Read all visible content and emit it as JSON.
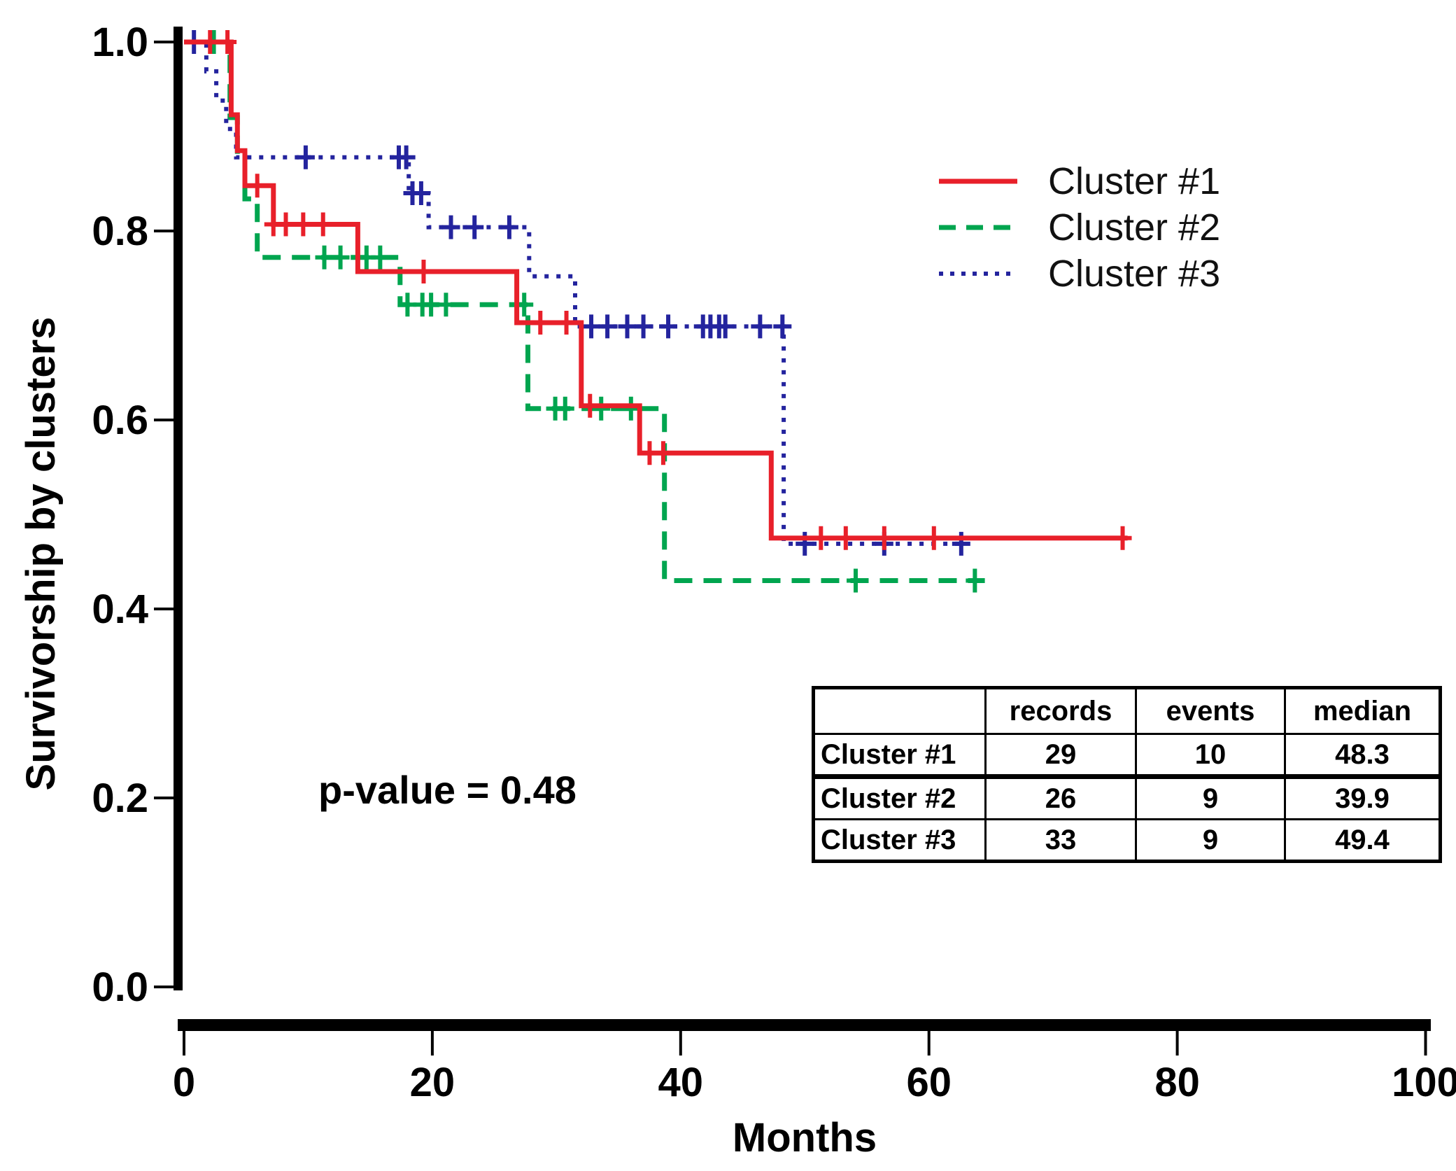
{
  "figure": {
    "y_axis_label": "Survivorship by clusters",
    "x_axis_label": "Months",
    "p_value_text": "p-value = 0.48",
    "legend": [
      {
        "label": "Cluster #1",
        "color": "#e8202a",
        "style": "solid"
      },
      {
        "label": "Cluster #2",
        "color": "#00a54f",
        "style": "dashed"
      },
      {
        "label": "Cluster #3",
        "color": "#24249e",
        "style": "dotted"
      }
    ],
    "table": {
      "headers": [
        "",
        "records",
        "events",
        "median"
      ],
      "rows": [
        {
          "label": "Cluster #1",
          "records": "29",
          "events": "10",
          "median": "48.3"
        },
        {
          "label": "Cluster #2",
          "records": "26",
          "events": "9",
          "median": "39.9"
        },
        {
          "label": "Cluster #3",
          "records": "33",
          "events": "9",
          "median": "49.4"
        }
      ]
    }
  },
  "chart_data": {
    "type": "line",
    "subtype": "kaplan-meier-step",
    "title": "",
    "xlabel": "Months",
    "ylabel": "Survivorship by clusters",
    "xlim": [
      0,
      100
    ],
    "ylim": [
      0.0,
      1.0
    ],
    "x_ticks": [
      0,
      20,
      40,
      60,
      80,
      100
    ],
    "y_ticks": [
      0.0,
      0.2,
      0.4,
      0.6,
      0.8,
      1.0
    ],
    "grid": false,
    "legend_position": "upper right",
    "annotations": [
      "p-value = 0.48"
    ],
    "series": [
      {
        "name": "Cluster #1",
        "color": "#e8202a",
        "dash": "solid",
        "width": 7,
        "steps": [
          [
            0,
            1.0
          ],
          [
            3.8,
            1.0
          ],
          [
            3.8,
            0.923
          ],
          [
            4.3,
            0.923
          ],
          [
            4.3,
            0.885
          ],
          [
            4.9,
            0.885
          ],
          [
            4.9,
            0.848
          ],
          [
            7.2,
            0.848
          ],
          [
            7.2,
            0.807
          ],
          [
            14.0,
            0.807
          ],
          [
            14.0,
            0.757
          ],
          [
            26.8,
            0.757
          ],
          [
            26.8,
            0.703
          ],
          [
            32.0,
            0.703
          ],
          [
            32.0,
            0.615
          ],
          [
            36.7,
            0.615
          ],
          [
            36.7,
            0.565
          ],
          [
            47.3,
            0.565
          ],
          [
            47.3,
            0.475
          ],
          [
            76.0,
            0.475
          ]
        ],
        "censors": [
          [
            2.1,
            1.0
          ],
          [
            3.5,
            1.0
          ],
          [
            5.9,
            0.848
          ],
          [
            7.2,
            0.807
          ],
          [
            8.2,
            0.807
          ],
          [
            9.6,
            0.807
          ],
          [
            11.2,
            0.807
          ],
          [
            19.3,
            0.757
          ],
          [
            28.7,
            0.703
          ],
          [
            30.8,
            0.703
          ],
          [
            32.7,
            0.615
          ],
          [
            37.5,
            0.565
          ],
          [
            38.6,
            0.565
          ],
          [
            51.3,
            0.475
          ],
          [
            53.3,
            0.475
          ],
          [
            56.4,
            0.475
          ],
          [
            60.4,
            0.475
          ],
          [
            75.6,
            0.475
          ]
        ]
      },
      {
        "name": "Cluster #2",
        "color": "#00a54f",
        "dash": "dashed",
        "width": 7,
        "steps": [
          [
            0,
            1.0
          ],
          [
            3.7,
            1.0
          ],
          [
            3.7,
            0.92
          ],
          [
            4.3,
            0.92
          ],
          [
            4.3,
            0.88
          ],
          [
            4.9,
            0.88
          ],
          [
            4.9,
            0.834
          ],
          [
            5.9,
            0.834
          ],
          [
            5.9,
            0.772
          ],
          [
            17.4,
            0.772
          ],
          [
            17.4,
            0.722
          ],
          [
            27.7,
            0.722
          ],
          [
            27.7,
            0.612
          ],
          [
            38.7,
            0.612
          ],
          [
            38.7,
            0.43
          ],
          [
            64.5,
            0.43
          ]
        ],
        "censors": [
          [
            2.4,
            1.0
          ],
          [
            11.3,
            0.772
          ],
          [
            12.6,
            0.772
          ],
          [
            14.7,
            0.772
          ],
          [
            15.8,
            0.772
          ],
          [
            18.0,
            0.722
          ],
          [
            19.2,
            0.722
          ],
          [
            19.9,
            0.722
          ],
          [
            21.1,
            0.722
          ],
          [
            27.4,
            0.722
          ],
          [
            29.9,
            0.612
          ],
          [
            30.7,
            0.612
          ],
          [
            33.6,
            0.612
          ],
          [
            36.0,
            0.612
          ],
          [
            54.1,
            0.43
          ],
          [
            63.7,
            0.43
          ]
        ]
      },
      {
        "name": "Cluster #3",
        "color": "#24249e",
        "dash": "dotted",
        "width": 6,
        "steps": [
          [
            0,
            1.0
          ],
          [
            1.8,
            1.0
          ],
          [
            1.8,
            0.969
          ],
          [
            2.6,
            0.969
          ],
          [
            2.6,
            0.938
          ],
          [
            3.4,
            0.938
          ],
          [
            3.4,
            0.908
          ],
          [
            4.2,
            0.908
          ],
          [
            4.2,
            0.878
          ],
          [
            18.1,
            0.878
          ],
          [
            18.1,
            0.84
          ],
          [
            19.7,
            0.84
          ],
          [
            19.7,
            0.804
          ],
          [
            27.8,
            0.804
          ],
          [
            27.8,
            0.752
          ],
          [
            31.5,
            0.752
          ],
          [
            31.5,
            0.699
          ],
          [
            48.3,
            0.699
          ],
          [
            48.3,
            0.469
          ],
          [
            63.0,
            0.469
          ]
        ],
        "censors": [
          [
            0.8,
            1.0
          ],
          [
            9.8,
            0.878
          ],
          [
            17.3,
            0.878
          ],
          [
            17.9,
            0.878
          ],
          [
            18.4,
            0.84
          ],
          [
            19.1,
            0.84
          ],
          [
            21.5,
            0.804
          ],
          [
            23.4,
            0.804
          ],
          [
            26.2,
            0.804
          ],
          [
            32.8,
            0.699
          ],
          [
            34.1,
            0.699
          ],
          [
            35.7,
            0.699
          ],
          [
            37.0,
            0.699
          ],
          [
            39.0,
            0.699
          ],
          [
            41.8,
            0.699
          ],
          [
            42.4,
            0.699
          ],
          [
            43.1,
            0.699
          ],
          [
            43.6,
            0.699
          ],
          [
            46.4,
            0.699
          ],
          [
            48.2,
            0.699
          ],
          [
            50.0,
            0.469
          ],
          [
            56.4,
            0.469
          ],
          [
            62.6,
            0.469
          ]
        ]
      }
    ]
  }
}
